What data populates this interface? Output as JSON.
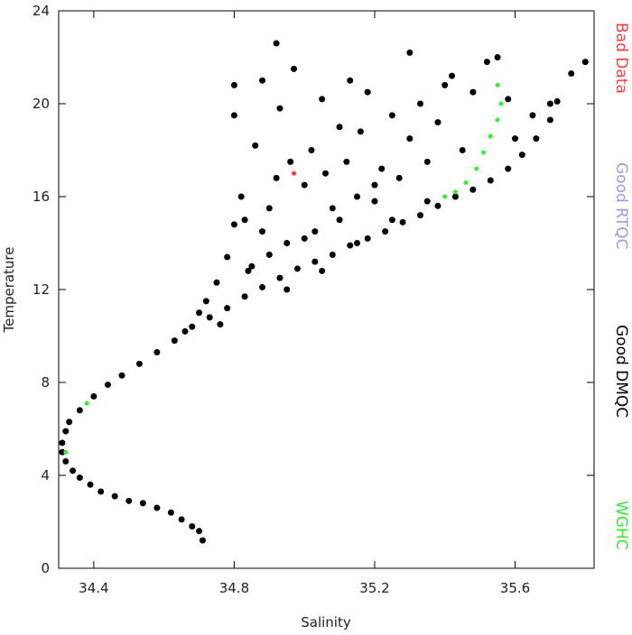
{
  "chart_data": {
    "type": "scatter",
    "x_label": "Salinity",
    "y_label": "Temperature",
    "xlim": [
      34.3,
      35.825
    ],
    "ylim": [
      0,
      24
    ],
    "xticks": [
      34.4,
      34.8,
      35.2,
      35.6
    ],
    "yticks": [
      0,
      4,
      8,
      12,
      16,
      20,
      24
    ],
    "series": [
      {
        "name": "Bad Data",
        "color": "#ff3b3b",
        "x": [
          34.97
        ],
        "y": [
          17.0
        ]
      },
      {
        "name": "Good RTQC",
        "color": "#9999ee",
        "x": [],
        "y": []
      },
      {
        "name": "Good DMQC",
        "color": "#000000",
        "x": [
          34.71,
          34.7,
          34.68,
          34.65,
          34.62,
          34.58,
          34.54,
          34.5,
          34.46,
          34.42,
          34.39,
          34.36,
          34.34,
          34.32,
          34.31,
          34.31,
          34.32,
          34.33,
          34.36,
          34.4,
          34.44,
          34.48,
          34.53,
          34.58,
          34.63,
          34.68,
          34.73,
          34.78,
          34.83,
          34.88,
          34.93,
          34.98,
          35.03,
          35.08,
          35.13,
          35.18,
          35.23,
          35.28,
          35.33,
          35.38,
          35.43,
          35.48,
          35.53,
          35.58,
          35.62,
          35.66,
          35.7,
          35.72,
          35.76,
          35.8,
          34.72,
          34.75,
          34.78,
          34.8,
          34.8,
          34.8,
          34.82,
          34.85,
          34.86,
          34.88,
          34.9,
          34.92,
          34.93,
          34.95,
          34.96,
          34.97,
          35.0,
          35.02,
          35.03,
          35.05,
          35.06,
          35.08,
          35.1,
          35.12,
          35.13,
          35.15,
          35.16,
          35.18,
          35.2,
          35.22,
          35.25,
          35.27,
          35.3,
          35.3,
          35.33,
          35.35,
          35.38,
          35.4,
          35.42,
          35.45,
          35.48,
          35.52,
          35.55,
          35.58,
          35.6,
          35.65,
          35.7,
          34.76,
          34.7,
          34.66,
          34.84,
          34.9,
          35.0,
          35.1,
          35.2,
          34.95,
          35.05,
          34.88,
          34.83,
          34.92,
          35.15,
          35.25,
          35.35
        ],
        "y": [
          1.2,
          1.6,
          1.8,
          2.1,
          2.4,
          2.6,
          2.8,
          2.9,
          3.1,
          3.3,
          3.6,
          3.9,
          4.2,
          4.6,
          5.0,
          5.4,
          5.9,
          6.3,
          6.8,
          7.4,
          7.9,
          8.3,
          8.8,
          9.3,
          9.8,
          10.4,
          10.8,
          11.2,
          11.7,
          12.1,
          12.5,
          12.9,
          13.2,
          13.5,
          13.9,
          14.2,
          14.5,
          14.9,
          15.2,
          15.6,
          16.0,
          16.3,
          16.7,
          17.2,
          17.8,
          18.5,
          19.3,
          20.1,
          21.3,
          21.8,
          11.5,
          12.3,
          13.4,
          14.8,
          20.8,
          19.5,
          16.0,
          13.0,
          18.2,
          21.0,
          15.5,
          22.6,
          19.8,
          14.0,
          17.5,
          21.5,
          16.5,
          18.0,
          14.5,
          20.2,
          17.0,
          15.5,
          19.0,
          17.5,
          21.0,
          16.0,
          18.8,
          20.5,
          15.8,
          17.2,
          19.5,
          16.8,
          22.2,
          18.5,
          20.0,
          17.5,
          19.2,
          20.8,
          21.2,
          18.0,
          20.5,
          21.8,
          22.0,
          20.2,
          18.5,
          19.5,
          20.0,
          10.5,
          11.0,
          10.2,
          12.8,
          13.5,
          14.2,
          15.0,
          16.5,
          12.0,
          12.8,
          14.5,
          15.0,
          16.8,
          14.0,
          15.0,
          15.8
        ]
      },
      {
        "name": "WGHC",
        "color": "#33ee33",
        "x": [
          35.4,
          35.43,
          35.46,
          35.49,
          35.51,
          35.53,
          35.55,
          35.56,
          35.55,
          34.32,
          34.38
        ],
        "y": [
          16.0,
          16.2,
          16.6,
          17.2,
          17.9,
          18.6,
          19.3,
          20.0,
          20.8,
          5.0,
          7.1
        ]
      }
    ]
  }
}
